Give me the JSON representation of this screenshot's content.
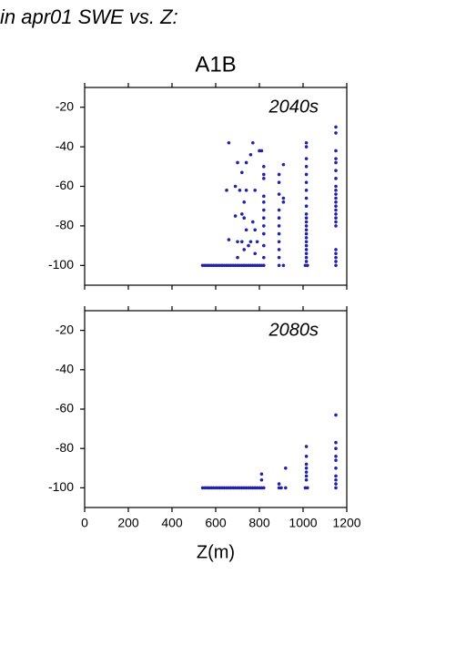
{
  "page_title": "in apr01 SWE vs. Z:",
  "chart_data": [
    {
      "type": "scatter",
      "title": "A1B",
      "annotation": "2040s",
      "color": "#2222aa",
      "xlim": [
        0,
        1200
      ],
      "xticks": [
        0,
        200,
        400,
        600,
        800,
        1000,
        1200
      ],
      "xtick_labels": false,
      "ylim": [
        -110,
        -10
      ],
      "yticks": [
        -100,
        -80,
        -60,
        -40,
        -20
      ],
      "x": [
        540,
        550,
        560,
        570,
        580,
        590,
        600,
        610,
        620,
        630,
        640,
        650,
        660,
        670,
        680,
        690,
        700,
        710,
        720,
        730,
        740,
        750,
        760,
        770,
        780,
        790,
        800,
        810,
        820,
        890,
        910,
        1010,
        1020,
        1150,
        660,
        770,
        760,
        740,
        700,
        800,
        810,
        720,
        690,
        710,
        650,
        740,
        780,
        730,
        720,
        730,
        690,
        770,
        780,
        740,
        660,
        700,
        720,
        760,
        750,
        730,
        700,
        790,
        780,
        820,
        820,
        820,
        820,
        820,
        820,
        820,
        820,
        820,
        820,
        820,
        890,
        890,
        890,
        890,
        890,
        890,
        890,
        890,
        890,
        890,
        910,
        910,
        910,
        1015,
        1015,
        1015,
        1015,
        1015,
        1015,
        1015,
        1015,
        1015,
        1015,
        1015,
        1015,
        1015,
        1015,
        1015,
        1015,
        1015,
        1015,
        1015,
        1015,
        1015,
        1015,
        1150,
        1150,
        1150,
        1150,
        1150,
        1150,
        1150,
        1150,
        1150,
        1150,
        1150,
        1150,
        1150,
        1150,
        1150,
        1150,
        1150,
        1150,
        1150,
        1150,
        1150,
        1150
      ],
      "values": [
        -100,
        -100,
        -100,
        -100,
        -100,
        -100,
        -100,
        -100,
        -100,
        -100,
        -100,
        -100,
        -100,
        -100,
        -100,
        -100,
        -100,
        -100,
        -100,
        -100,
        -100,
        -100,
        -100,
        -100,
        -100,
        -100,
        -100,
        -100,
        -100,
        -100,
        -100,
        -100,
        -100,
        -100,
        -38,
        -38,
        -44,
        -48,
        -48,
        -42,
        -42,
        -53,
        -60,
        -62,
        -62,
        -62,
        -62,
        -68,
        -74,
        -76,
        -75,
        -78,
        -82,
        -82,
        -87,
        -88,
        -88,
        -88,
        -90,
        -92,
        -96,
        -88,
        -94,
        -50,
        -54,
        -56,
        -65,
        -68,
        -72,
        -76,
        -80,
        -84,
        -90,
        -96,
        -54,
        -58,
        -64,
        -72,
        -76,
        -80,
        -84,
        -88,
        -92,
        -96,
        -49,
        -66,
        -68,
        -38,
        -40,
        -46,
        -50,
        -54,
        -58,
        -62,
        -66,
        -70,
        -74,
        -76,
        -78,
        -80,
        -82,
        -84,
        -86,
        -88,
        -90,
        -92,
        -94,
        -96,
        -98,
        -30,
        -33,
        -42,
        -46,
        -48,
        -52,
        -56,
        -60,
        -62,
        -64,
        -66,
        -68,
        -70,
        -72,
        -74,
        -76,
        -78,
        -80,
        -92,
        -94,
        -96,
        -98
      ]
    },
    {
      "type": "scatter",
      "annotation": "2080s",
      "xlabel": "Z(m)",
      "color": "#2222aa",
      "xlim": [
        0,
        1200
      ],
      "xticks": [
        0,
        200,
        400,
        600,
        800,
        1000,
        1200
      ],
      "xtick_labels": true,
      "ylim": [
        -110,
        -10
      ],
      "yticks": [
        -100,
        -80,
        -60,
        -40,
        -20
      ],
      "x": [
        540,
        550,
        560,
        570,
        580,
        590,
        600,
        610,
        620,
        630,
        640,
        650,
        660,
        670,
        680,
        690,
        700,
        710,
        720,
        730,
        740,
        750,
        760,
        770,
        780,
        790,
        800,
        810,
        820,
        890,
        900,
        920,
        1010,
        1020,
        1150,
        810,
        810,
        890,
        920,
        1015,
        1015,
        1015,
        1015,
        1015,
        1015,
        1015,
        1150,
        1150,
        1150,
        1150,
        1150,
        1150,
        1150,
        1150,
        1150
      ],
      "values": [
        -100,
        -100,
        -100,
        -100,
        -100,
        -100,
        -100,
        -100,
        -100,
        -100,
        -100,
        -100,
        -100,
        -100,
        -100,
        -100,
        -100,
        -100,
        -100,
        -100,
        -100,
        -100,
        -100,
        -100,
        -100,
        -100,
        -100,
        -100,
        -100,
        -100,
        -100,
        -100,
        -100,
        -100,
        -100,
        -93,
        -96,
        -98,
        -90,
        -79,
        -84,
        -88,
        -90,
        -92,
        -94,
        -96,
        -63,
        -77,
        -80,
        -84,
        -86,
        -90,
        -94,
        -96,
        -98
      ]
    }
  ]
}
